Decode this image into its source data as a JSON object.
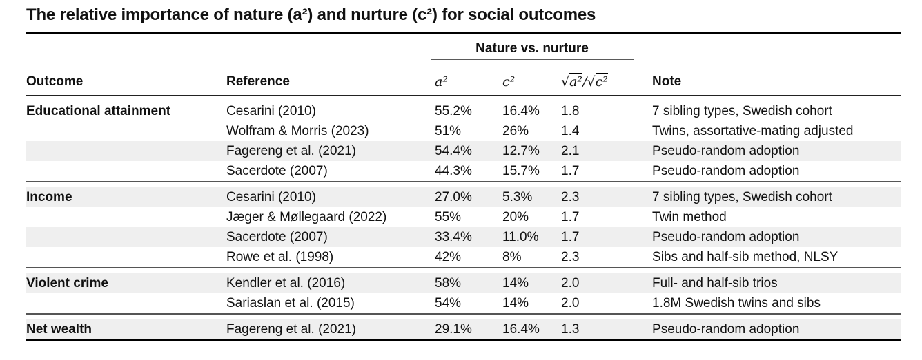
{
  "title": "The relative importance of nature (a²) and nurture (c²) for social outcomes",
  "colors": {
    "background": "#ffffff",
    "text": "#111111",
    "stripe": "#efefef",
    "heavy_rule": "#000000",
    "mid_rule": "#555555"
  },
  "table": {
    "group_header": "Nature vs. nurture",
    "columns": {
      "outcome": "Outcome",
      "reference": "Reference",
      "a2": "a²",
      "c2": "c²",
      "ratio_parts": {
        "sqrt1": "√",
        "rad1": "a²",
        "slash": "/",
        "sqrt2": "√",
        "rad2": "c²"
      },
      "note": "Note"
    },
    "sections": [
      {
        "outcome": "Educational attainment",
        "rows": [
          {
            "reference": "Cesarini (2010)",
            "a2": "55.2%",
            "c2": "16.4%",
            "ratio": "1.8",
            "note": "7 sibling types, Swedish cohort",
            "shaded": false
          },
          {
            "reference": "Wolfram & Morris (2023)",
            "a2": "51%",
            "c2": "26%",
            "ratio": "1.4",
            "note": "Twins, assortative-mating adjusted",
            "shaded": false
          },
          {
            "reference": "Fagereng et al. (2021)",
            "a2": "54.4%",
            "c2": "12.7%",
            "ratio": "2.1",
            "note": "Pseudo-random adoption",
            "shaded": true
          },
          {
            "reference": "Sacerdote (2007)",
            "a2": "44.3%",
            "c2": "15.7%",
            "ratio": "1.7",
            "note": "Pseudo-random adoption",
            "shaded": false
          }
        ]
      },
      {
        "outcome": "Income",
        "rows": [
          {
            "reference": "Cesarini (2010)",
            "a2": "27.0%",
            "c2": "5.3%",
            "ratio": "2.3",
            "note": "7 sibling types, Swedish cohort",
            "shaded": true
          },
          {
            "reference": "Jæger & Møllegaard (2022)",
            "a2": "55%",
            "c2": "20%",
            "ratio": "1.7",
            "note": "Twin method",
            "shaded": false
          },
          {
            "reference": "Sacerdote (2007)",
            "a2": "33.4%",
            "c2": "11.0%",
            "ratio": "1.7",
            "note": "Pseudo-random adoption",
            "shaded": true
          },
          {
            "reference": "Rowe et al. (1998)",
            "a2": "42%",
            "c2": "8%",
            "ratio": "2.3",
            "note": "Sibs and half-sib method, NLSY",
            "shaded": false
          }
        ]
      },
      {
        "outcome": "Violent crime",
        "rows": [
          {
            "reference": "Kendler et al. (2016)",
            "a2": "58%",
            "c2": "14%",
            "ratio": "2.0",
            "note": "Full- and half-sib trios",
            "shaded": true
          },
          {
            "reference": "Sariaslan et al. (2015)",
            "a2": "54%",
            "c2": "14%",
            "ratio": "2.0",
            "note": "1.8M Swedish twins and sibs",
            "shaded": false
          }
        ]
      },
      {
        "outcome": "Net wealth",
        "rows": [
          {
            "reference": "Fagereng et al. (2021)",
            "a2": "29.1%",
            "c2": "16.4%",
            "ratio": "1.3",
            "note": "Pseudo-random adoption",
            "shaded": true
          }
        ]
      }
    ]
  }
}
